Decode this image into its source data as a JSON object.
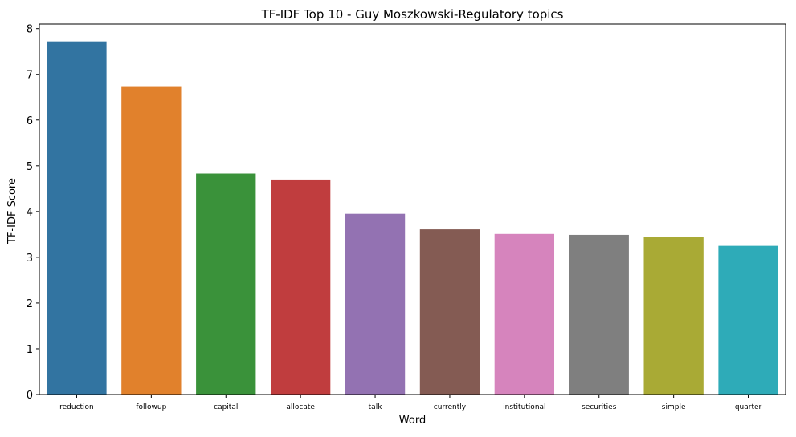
{
  "chart_data": {
    "type": "bar",
    "title": "TF-IDF Top 10 - Guy Moszkowski-Regulatory topics",
    "xlabel": "Word",
    "ylabel": "TF-IDF Score",
    "categories": [
      "reduction",
      "followup",
      "capital",
      "allocate",
      "talk",
      "currently",
      "institutional",
      "securities",
      "simple",
      "quarter"
    ],
    "values": [
      7.72,
      6.74,
      4.83,
      4.7,
      3.95,
      3.61,
      3.51,
      3.49,
      3.44,
      3.25
    ],
    "colors": [
      "#3274a1",
      "#e1812c",
      "#3a923a",
      "#c03d3e",
      "#9372b2",
      "#845b53",
      "#d684bd",
      "#7f7f7f",
      "#a9aa35",
      "#2eabb8"
    ],
    "ylim": [
      0,
      8.1
    ],
    "yticks": [
      0,
      1,
      2,
      3,
      4,
      5,
      6,
      7,
      8
    ],
    "grid": false,
    "legend": "none"
  }
}
